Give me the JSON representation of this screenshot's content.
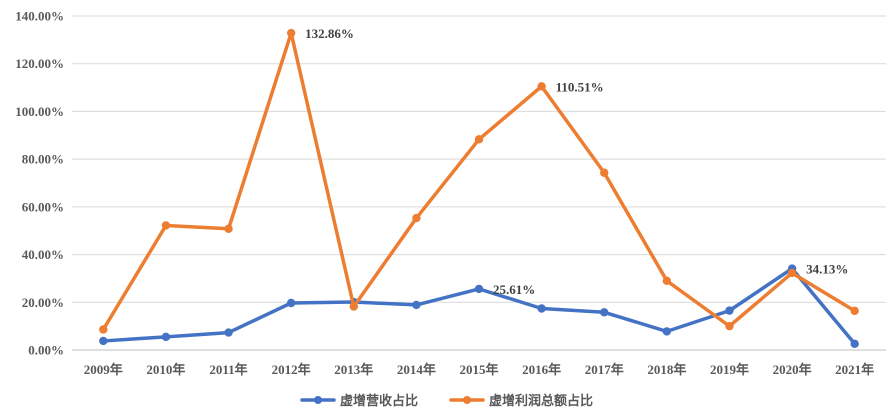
{
  "chart_data": {
    "type": "line",
    "categories": [
      "2009年",
      "2010年",
      "2011年",
      "2012年",
      "2013年",
      "2014年",
      "2015年",
      "2016年",
      "2017年",
      "2018年",
      "2019年",
      "2020年",
      "2021年"
    ],
    "series": [
      {
        "name": "虚增营收占比",
        "color": "#4472C4",
        "values": [
          3.8,
          5.5,
          7.3,
          19.7,
          20.1,
          18.9,
          25.61,
          17.4,
          15.8,
          7.8,
          16.5,
          34.13,
          2.6
        ]
      },
      {
        "name": "虚增利润总额占比",
        "color": "#ED7D31",
        "values": [
          8.6,
          52.2,
          50.8,
          132.86,
          18.2,
          55.3,
          88.3,
          110.51,
          74.3,
          29.0,
          10.0,
          32.3,
          16.4
        ]
      }
    ],
    "ylim": [
      0,
      140
    ],
    "yticks": [
      "0.00%",
      "20.00%",
      "40.00%",
      "60.00%",
      "80.00%",
      "100.00%",
      "120.00%",
      "140.00%"
    ],
    "grid": true,
    "legend_position": "bottom",
    "annotations": [
      {
        "series": 1,
        "index": 3,
        "text": "132.86%"
      },
      {
        "series": 0,
        "index": 6,
        "text": "25.61%"
      },
      {
        "series": 1,
        "index": 7,
        "text": "110.51%"
      },
      {
        "series": 0,
        "index": 11,
        "text": "34.13%"
      }
    ]
  }
}
